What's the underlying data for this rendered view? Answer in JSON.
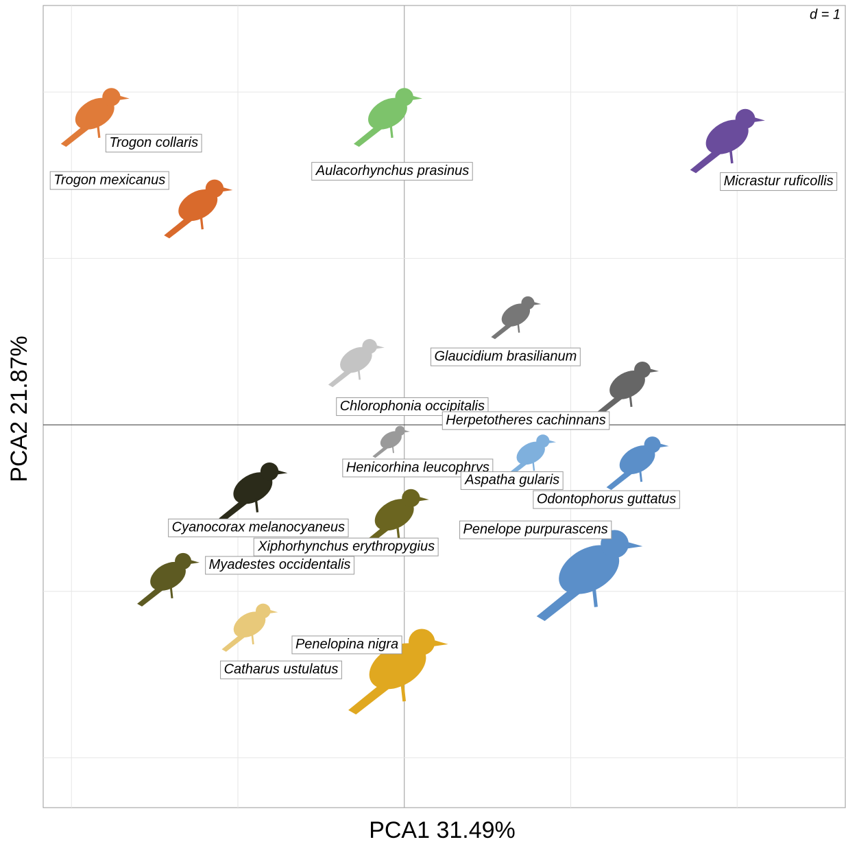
{
  "chart_data": {
    "type": "scatter",
    "xlabel": "PCA1 31.49%",
    "ylabel": "PCA2 21.87%",
    "annotation": "d = 1",
    "xlim": [
      -2.17,
      2.65
    ],
    "ylim": [
      -2.3,
      2.52
    ],
    "xticks": [
      -2,
      -1,
      0,
      1,
      2
    ],
    "yticks": [
      -2,
      -1,
      0,
      1,
      2
    ],
    "grid": true,
    "labels": [
      "Trogon collaris",
      "Trogon mexicanus",
      "Aulacorhynchus prasinus",
      "Micrastur ruficollis",
      "Glaucidium brasilianum",
      "Chlorophonia occipitalis",
      "Herpetotheres cachinnans",
      "Henicorhina leucophrys",
      "Aspatha gularis",
      "Odontophorus guttatus",
      "Penelope purpurascens",
      "Cyanocorax melanocyaneus",
      "Xiphorhynchus erythropygius",
      "Myadestes occidentalis",
      "Catharus ustulatus",
      "Penelopina nigra"
    ],
    "x": [
      -1.86,
      -1.24,
      -0.1,
      1.94,
      0.67,
      -0.29,
      1.34,
      -0.08,
      0.76,
      1.4,
      1.11,
      -0.91,
      -0.06,
      -1.42,
      -0.93,
      -0.04
    ],
    "y": [
      1.87,
      1.32,
      1.87,
      1.73,
      0.66,
      0.39,
      0.24,
      -0.09,
      -0.17,
      -0.21,
      -0.87,
      -0.38,
      -0.54,
      -0.91,
      -1.2,
      -1.45
    ],
    "colors": [
      "#e07b39",
      "#d96a2c",
      "#7dc36b",
      "#6a4c9c",
      "#777777",
      "#c4c4c4",
      "#666666",
      "#9a9a9a",
      "#7fb0dd",
      "#5b8fc9",
      "#5b8fc9",
      "#2b2b1a",
      "#6b6520",
      "#5d5a22",
      "#e8c97a",
      "#e0a820"
    ]
  }
}
